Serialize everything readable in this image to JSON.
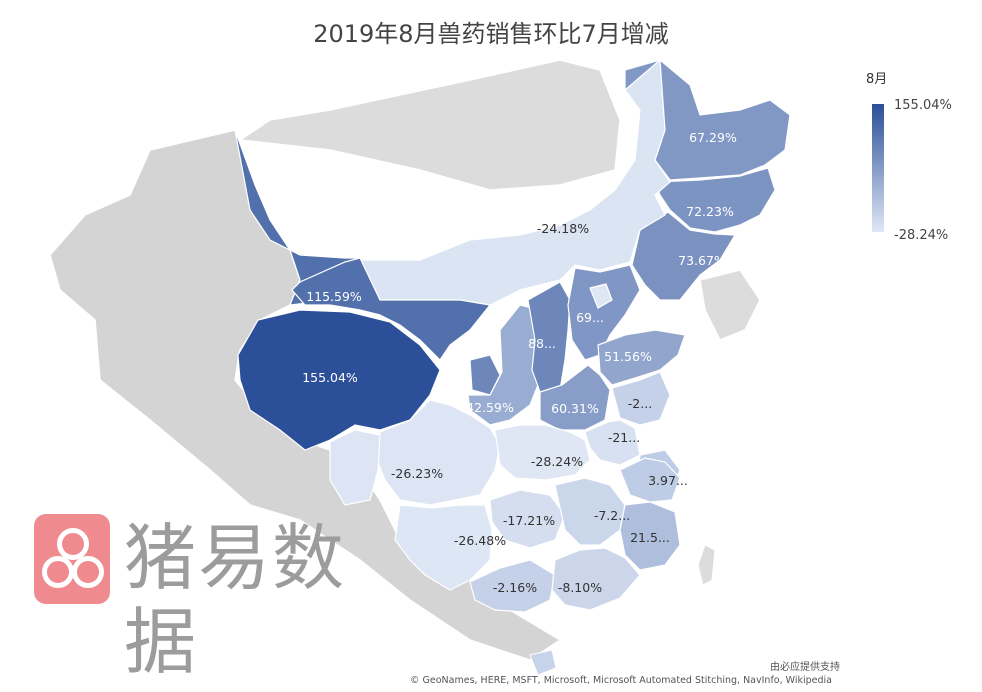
{
  "title": "2019年8月兽药销售环比7月增减",
  "legend": {
    "title": "8月",
    "max_label": "155.04%",
    "min_label": "-28.24%",
    "color_high": "#2b4f98",
    "color_low": "#dfe7f5"
  },
  "regions": [
    {
      "label": "67.29%",
      "value": 67.29
    },
    {
      "label": "72.23%",
      "value": 72.23
    },
    {
      "label": "73.67%",
      "value": 73.67
    },
    {
      "label": "-24.18%",
      "value": -24.18
    },
    {
      "label": "115.59%",
      "value": 115.59
    },
    {
      "label": "155.04%",
      "value": 155.04
    },
    {
      "label": "69...",
      "value": 69
    },
    {
      "label": "88...",
      "value": 88
    },
    {
      "label": "51.56%",
      "value": 51.56
    },
    {
      "label": "42.59%",
      "value": 42.59
    },
    {
      "label": "60.31%",
      "value": 60.31
    },
    {
      "label": "-2...",
      "value": -2
    },
    {
      "label": "-21...",
      "value": -21
    },
    {
      "label": "-26.23%",
      "value": -26.23
    },
    {
      "label": "-28.24%",
      "value": -28.24
    },
    {
      "label": "3.97...",
      "value": 3.97
    },
    {
      "label": "-17.21%",
      "value": -17.21
    },
    {
      "label": "-7.2...",
      "value": -7.2
    },
    {
      "label": "21.5...",
      "value": 21.5
    },
    {
      "label": "-26.48%",
      "value": -26.48
    },
    {
      "label": "-2.16%",
      "value": -2.16
    },
    {
      "label": "-8.10%",
      "value": -8.1
    }
  ],
  "watermark": {
    "text": "猪易数据",
    "logo_color": "#ef8a8f"
  },
  "credits": {
    "line1": "由必应提供支持",
    "line2": "© GeoNames, HERE, MSFT, Microsoft, Microsoft Automated Stitching, NavInfo, Wikipedia"
  }
}
